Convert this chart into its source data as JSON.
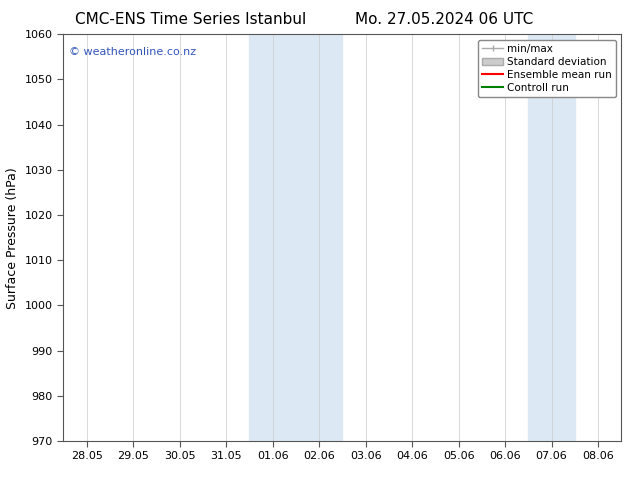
{
  "title_left": "CMC-ENS Time Series Istanbul",
  "title_right": "Mo. 27.05.2024 06 UTC",
  "ylabel": "Surface Pressure (hPa)",
  "ylim": [
    970,
    1060
  ],
  "yticks": [
    970,
    980,
    990,
    1000,
    1010,
    1020,
    1030,
    1040,
    1050,
    1060
  ],
  "xtick_labels": [
    "28.05",
    "29.05",
    "30.05",
    "31.05",
    "01.06",
    "02.06",
    "03.06",
    "04.06",
    "05.06",
    "06.06",
    "07.06",
    "08.06"
  ],
  "xlim_start": 0,
  "xlim_end": 11,
  "shaded_regions": [
    {
      "x_start": 3.5,
      "x_end": 4.5
    },
    {
      "x_start": 4.5,
      "x_end": 5.5
    },
    {
      "x_start": 9.5,
      "x_end": 10.5
    }
  ],
  "shaded_color": "#dce9f5",
  "watermark_text": "© weatheronline.co.nz",
  "watermark_color": "#3355bb",
  "background_color": "#ffffff",
  "grid_color": "#cccccc",
  "spine_color": "#555555",
  "title_fontsize": 11,
  "axis_label_fontsize": 9,
  "tick_label_fontsize": 8,
  "watermark_fontsize": 8,
  "legend_fontsize": 7.5
}
